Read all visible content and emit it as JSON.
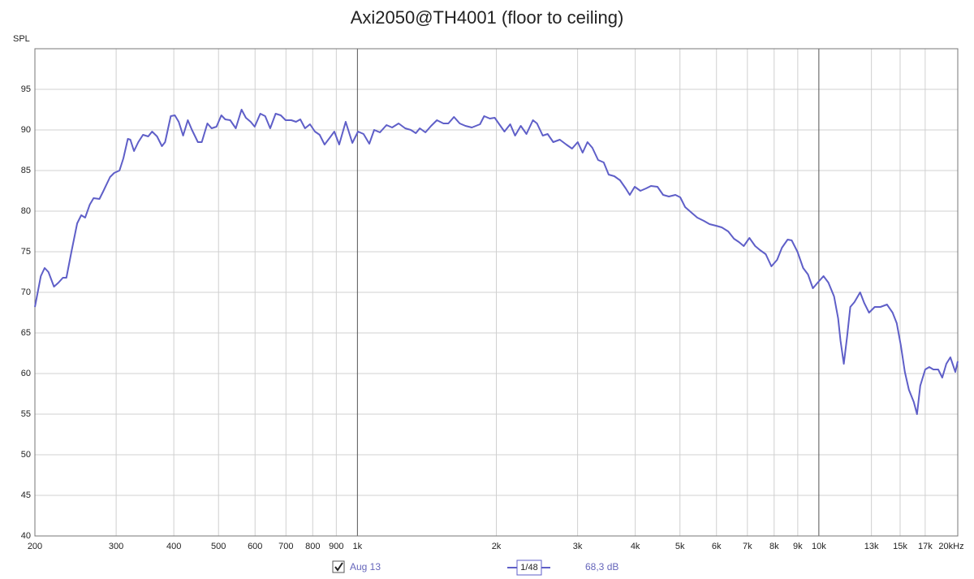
{
  "chart_data": {
    "type": "line",
    "title": "Axi2050@TH4001 (floor to ceiling)",
    "y_label": "SPL",
    "xscale": "log",
    "grid": true,
    "xlim": [
      200,
      20000
    ],
    "ylim": [
      40,
      100
    ],
    "xticks": [
      200,
      300,
      400,
      500,
      600,
      700,
      800,
      900,
      {
        "value": 1000,
        "label": "1k"
      },
      {
        "value": 2000,
        "label": "2k"
      },
      {
        "value": 3000,
        "label": "3k"
      },
      {
        "value": 4000,
        "label": "4k"
      },
      {
        "value": 5000,
        "label": "5k"
      },
      {
        "value": 6000,
        "label": "6k"
      },
      {
        "value": 7000,
        "label": "7k"
      },
      {
        "value": 8000,
        "label": "8k"
      },
      {
        "value": 9000,
        "label": "9k"
      },
      {
        "value": 10000,
        "label": "10k"
      },
      {
        "value": 13000,
        "label": "13k"
      },
      {
        "value": 15000,
        "label": "15k"
      },
      {
        "value": 17000,
        "label": "17k"
      },
      {
        "value": 20000,
        "label": "20kHz"
      }
    ],
    "yticks": [
      40,
      45,
      50,
      55,
      60,
      65,
      70,
      75,
      80,
      85,
      90,
      95
    ],
    "x": [
      200,
      206,
      210,
      214,
      220,
      225,
      230,
      234,
      240,
      247,
      252,
      257,
      263,
      268,
      276,
      281,
      291,
      297,
      305,
      311,
      318,
      322,
      328,
      335,
      343,
      352,
      359,
      368,
      377,
      383,
      394,
      402,
      410,
      419,
      429,
      438,
      451,
      460,
      473,
      483,
      495,
      507,
      517,
      530,
      545,
      561,
      573,
      587,
      599,
      616,
      631,
      647,
      665,
      682,
      699,
      719,
      736,
      752,
      770,
      789,
      809,
      828,
      849,
      870,
      891,
      913,
      943,
      975,
      1003,
      1031,
      1061,
      1087,
      1119,
      1156,
      1189,
      1228,
      1269,
      1305,
      1338,
      1365,
      1404,
      1445,
      1487,
      1536,
      1574,
      1619,
      1666,
      1714,
      1770,
      1844,
      1882,
      1936,
      1984,
      2024,
      2083,
      2143,
      2196,
      2259,
      2324,
      2401,
      2450,
      2521,
      2583,
      2657,
      2745,
      2836,
      2918,
      3002,
      3076,
      3152,
      3229,
      3323,
      3418,
      3503,
      3604,
      3708,
      3815,
      3893,
      3989,
      4104,
      4222,
      4326,
      4469,
      4598,
      4731,
      4887,
      5008,
      5131,
      5300,
      5453,
      5634,
      5796,
      5987,
      6160,
      6363,
      6547,
      6708,
      6874,
      7072,
      7276,
      7455,
      7670,
      7891,
      8119,
      8319,
      8559,
      8734,
      8986,
      9245,
      9474,
      9707,
      9946,
      10233,
      10486,
      10788,
      11009,
      11144,
      11327,
      11512,
      11701,
      11941,
      12285,
      12537,
      12846,
      13217,
      13598,
      14047,
      14450,
      14747,
      15049,
      15358,
      15673,
      16059,
      16322,
      16590,
      16999,
      17347,
      17704,
      18140,
      18512,
      18892,
      19279,
      19758,
      20000
    ],
    "series": [
      {
        "name": "Aug 13",
        "color": "#5f5fc8",
        "values": [
          68.2,
          72,
          73,
          72.5,
          70.7,
          71.2,
          71.8,
          71.8,
          75,
          78.5,
          79.5,
          79.2,
          80.8,
          81.6,
          81.5,
          82.4,
          84.2,
          84.7,
          85,
          86.5,
          88.9,
          88.8,
          87.4,
          88.5,
          89.4,
          89.2,
          89.8,
          89.2,
          88,
          88.5,
          91.7,
          91.8,
          91,
          89.3,
          91.2,
          90,
          88.5,
          88.5,
          90.8,
          90.2,
          90.4,
          91.8,
          91.3,
          91.2,
          90.2,
          92.5,
          91.5,
          91,
          90.4,
          92,
          91.7,
          90.2,
          92,
          91.8,
          91.2,
          91.2,
          91,
          91.3,
          90.2,
          90.7,
          89.8,
          89.4,
          88.2,
          89,
          89.8,
          88.2,
          91,
          88.4,
          89.8,
          89.5,
          88.3,
          90,
          89.7,
          90.6,
          90.3,
          90.8,
          90.2,
          90,
          89.6,
          90.2,
          89.7,
          90.5,
          91.2,
          90.8,
          90.8,
          91.6,
          90.8,
          90.5,
          90.3,
          90.7,
          91.7,
          91.4,
          91.5,
          90.8,
          89.8,
          90.7,
          89.3,
          90.5,
          89.5,
          91.2,
          90.8,
          89.3,
          89.5,
          88.5,
          88.8,
          88.2,
          87.7,
          88.5,
          87.2,
          88.5,
          87.8,
          86.3,
          86,
          84.5,
          84.3,
          83.8,
          82.8,
          82,
          83,
          82.5,
          82.8,
          83.1,
          83,
          82,
          81.8,
          82,
          81.7,
          80.5,
          79.8,
          79.2,
          78.8,
          78.4,
          78.2,
          78,
          77.5,
          76.6,
          76.2,
          75.7,
          76.7,
          75.7,
          75.2,
          74.7,
          73.2,
          74,
          75.5,
          76.5,
          76.4,
          75,
          73,
          72.2,
          70.5,
          71.2,
          72,
          71.2,
          69.5,
          66.8,
          64,
          61.2,
          64.5,
          68.2,
          68.8,
          70,
          68.7,
          67.5,
          68.2,
          68.2,
          68.5,
          67.5,
          66.2,
          63.5,
          60.2,
          58,
          56.5,
          55,
          58.5,
          60.5,
          60.8,
          60.5,
          60.5,
          59.5,
          61.2,
          62,
          60.2,
          61.5
        ]
      }
    ],
    "smoothing": "1/48",
    "cursor_value": "68,3 dB"
  }
}
